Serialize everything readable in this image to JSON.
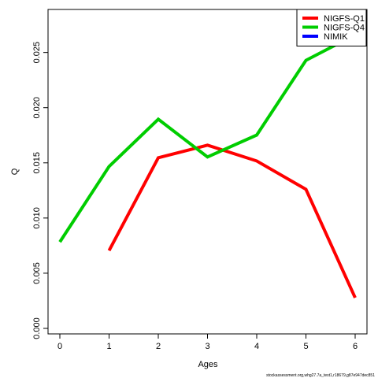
{
  "chart_data": {
    "type": "line",
    "x": [
      0,
      1,
      2,
      3,
      4,
      5,
      6
    ],
    "series": [
      {
        "name": "NIGFS-Q1",
        "color": "#ff0000",
        "values": [
          null,
          0.00705,
          0.01546,
          0.0166,
          0.01517,
          0.0126,
          0.00278
        ]
      },
      {
        "name": "NIGFS-Q4",
        "color": "#00cd00",
        "values": [
          0.00783,
          0.01467,
          0.01895,
          0.01553,
          0.01752,
          0.02429,
          0.0266
        ]
      },
      {
        "name": "NIMIK",
        "color": "#0000ff",
        "values": [
          null,
          null,
          null,
          null,
          null,
          null,
          null
        ]
      }
    ],
    "xlabel": "Ages",
    "ylabel": "Q",
    "xlim": [
      -0.24,
      6.24
    ],
    "xticks": [
      0,
      1,
      2,
      3,
      4,
      5,
      6
    ],
    "ylim": [
      -0.0005,
      0.0289
    ],
    "yticks": [
      {
        "value": 0,
        "label": "0.000"
      },
      {
        "value": 0.005,
        "label": "0.005"
      },
      {
        "value": 0.01,
        "label": "0.010"
      },
      {
        "value": 0.015,
        "label": "0.015"
      },
      {
        "value": 0.02,
        "label": "0.020"
      },
      {
        "value": 0.025,
        "label": "0.025"
      }
    ],
    "legend": "top-right",
    "footnote": "stockassessment.org,whg27.7a_test1,r18679,g87e947dec851"
  }
}
